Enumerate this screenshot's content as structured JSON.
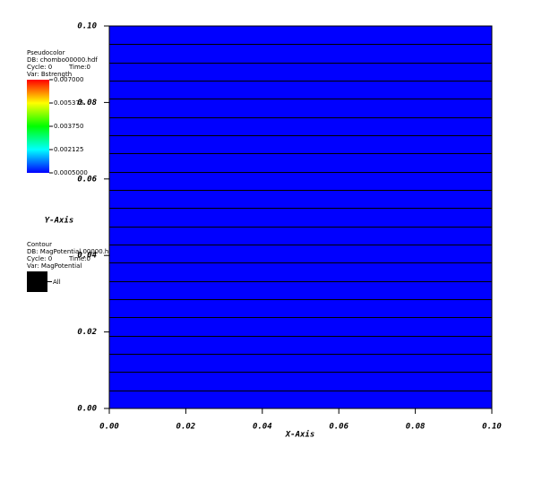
{
  "chart_data": {
    "type": "contour",
    "xlabel": "X-Axis",
    "ylabel": "Y-Axis",
    "xlim": [
      0,
      0.1
    ],
    "ylim": [
      0,
      0.1
    ],
    "xticks": [
      {
        "value": 0,
        "label": "0.00"
      },
      {
        "value": 0.02,
        "label": "0.02"
      },
      {
        "value": 0.04,
        "label": "0.04"
      },
      {
        "value": 0.06,
        "label": "0.06"
      },
      {
        "value": 0.08,
        "label": "0.08"
      },
      {
        "value": 0.1,
        "label": "0.10"
      }
    ],
    "yticks": [
      {
        "value": 0,
        "label": "0.00"
      },
      {
        "value": 0.02,
        "label": "0.02"
      },
      {
        "value": 0.04,
        "label": "0.04"
      },
      {
        "value": 0.06,
        "label": "0.06"
      },
      {
        "value": 0.08,
        "label": "0.08"
      },
      {
        "value": 0.1,
        "label": "0.10"
      }
    ],
    "fill_color": "#0000ff",
    "contour_color": "#000000",
    "contour_levels": [
      0.00476,
      0.00952,
      0.01429,
      0.01905,
      0.02381,
      0.02857,
      0.03333,
      0.0381,
      0.04286,
      0.04762,
      0.05238,
      0.05714,
      0.0619,
      0.06667,
      0.07143,
      0.07619,
      0.08095,
      0.08571,
      0.09048,
      0.09524
    ],
    "pseudocolor_legend": {
      "title": "Pseudocolor",
      "db": "DB: chombo00000.hdf",
      "cycle": "Cycle: 0",
      "time": "Time:0",
      "var": "Var: Bstrength",
      "range": [
        0.0005,
        0.007
      ],
      "ticks": [
        {
          "value": 0.007,
          "label": "0.007000"
        },
        {
          "value": 0.005375,
          "label": "0.005375"
        },
        {
          "value": 0.00375,
          "label": "0.003750"
        },
        {
          "value": 0.002125,
          "label": "0.002125"
        },
        {
          "value": 0.0005,
          "label": "0.0005000"
        }
      ]
    },
    "contour_legend": {
      "title": "Contour",
      "db": "DB: MagPotential.00000.hdf",
      "cycle": "Cycle: 0",
      "time": "Time:0",
      "var": "Var: MagPotential",
      "entry": "All"
    }
  }
}
